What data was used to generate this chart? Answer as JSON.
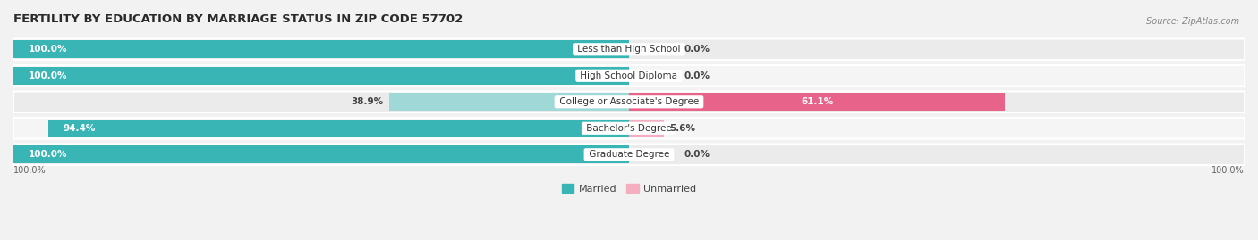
{
  "title": "FERTILITY BY EDUCATION BY MARRIAGE STATUS IN ZIP CODE 57702",
  "source": "Source: ZipAtlas.com",
  "categories": [
    "Less than High School",
    "High School Diploma",
    "College or Associate's Degree",
    "Bachelor's Degree",
    "Graduate Degree"
  ],
  "married": [
    100.0,
    100.0,
    38.9,
    94.4,
    100.0
  ],
  "unmarried": [
    0.0,
    0.0,
    61.1,
    5.6,
    0.0
  ],
  "married_color_full": "#3ab5b5",
  "married_color_light": "#a0d8d8",
  "unmarried_color_full": "#e8638a",
  "unmarried_color_light": "#f4aec0",
  "row_bg_odd": "#ebebeb",
  "row_bg_even": "#f5f5f5",
  "bg_color": "#f2f2f2",
  "title_fontsize": 9.5,
  "source_fontsize": 7,
  "value_fontsize": 7.5,
  "label_fontsize": 7.5,
  "legend_fontsize": 8,
  "axis_label_left": "100.0%",
  "axis_label_right": "100.0%"
}
